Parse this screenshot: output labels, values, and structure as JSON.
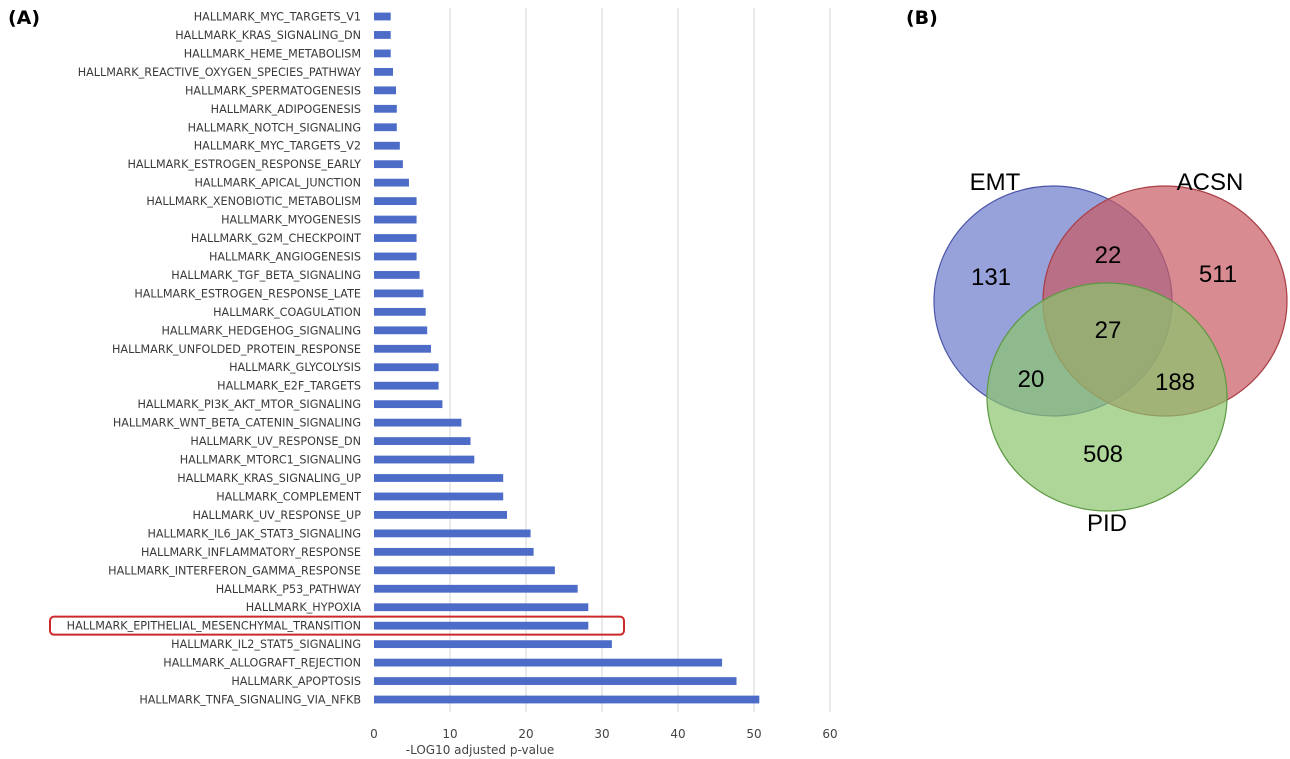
{
  "panels": {
    "a_label": "(A)",
    "b_label": "(B)"
  },
  "colors": {
    "bar": "#4d6cc8",
    "grid": "#d4d4d4",
    "highlight": "#cc2a2a",
    "emt": "#6c7acb",
    "acsn": "#c75a61",
    "pid": "#8cc46e"
  },
  "chart_data": [
    {
      "type": "bar",
      "orientation": "horizontal",
      "categories": [
        "HALLMARK_MYC_TARGETS_V1",
        "HALLMARK_KRAS_SIGNALING_DN",
        "HALLMARK_HEME_METABOLISM",
        "HALLMARK_REACTIVE_OXYGEN_SPECIES_PATHWAY",
        "HALLMARK_SPERMATOGENESIS",
        "HALLMARK_ADIPOGENESIS",
        "HALLMARK_NOTCH_SIGNALING",
        "HALLMARK_MYC_TARGETS_V2",
        "HALLMARK_ESTROGEN_RESPONSE_EARLY",
        "HALLMARK_APICAL_JUNCTION",
        "HALLMARK_XENOBIOTIC_METABOLISM",
        "HALLMARK_MYOGENESIS",
        "HALLMARK_G2M_CHECKPOINT",
        "HALLMARK_ANGIOGENESIS",
        "HALLMARK_TGF_BETA_SIGNALING",
        "HALLMARK_ESTROGEN_RESPONSE_LATE",
        "HALLMARK_COAGULATION",
        "HALLMARK_HEDGEHOG_SIGNALING",
        "HALLMARK_UNFOLDED_PROTEIN_RESPONSE",
        "HALLMARK_GLYCOLYSIS",
        "HALLMARK_E2F_TARGETS",
        "HALLMARK_PI3K_AKT_MTOR_SIGNALING",
        "HALLMARK_WNT_BETA_CATENIN_SIGNALING",
        "HALLMARK_UV_RESPONSE_DN",
        "HALLMARK_MTORC1_SIGNALING",
        "HALLMARK_KRAS_SIGNALING_UP",
        "HALLMARK_COMPLEMENT",
        "HALLMARK_UV_RESPONSE_UP",
        "HALLMARK_IL6_JAK_STAT3_SIGNALING",
        "HALLMARK_INFLAMMATORY_RESPONSE",
        "HALLMARK_INTERFERON_GAMMA_RESPONSE",
        "HALLMARK_P53_PATHWAY",
        "HALLMARK_HYPOXIA",
        "HALLMARK_EPITHELIAL_MESENCHYMAL_TRANSITION",
        "HALLMARK_IL2_STAT5_SIGNALING",
        "HALLMARK_ALLOGRAFT_REJECTION",
        "HALLMARK_APOPTOSIS",
        "HALLMARK_TNFA_SIGNALING_VIA_NFKB"
      ],
      "values": [
        2.2,
        2.2,
        2.2,
        2.5,
        2.9,
        3.0,
        3.0,
        3.4,
        3.8,
        4.6,
        5.6,
        5.6,
        5.6,
        5.6,
        6.0,
        6.5,
        6.8,
        7.0,
        7.5,
        8.5,
        8.5,
        9.0,
        11.5,
        12.7,
        13.2,
        17.0,
        17.0,
        17.5,
        20.6,
        21.0,
        23.8,
        26.8,
        28.2,
        28.2,
        31.3,
        45.8,
        47.7,
        50.7
      ],
      "highlighted_category": "HALLMARK_EPITHELIAL_MESENCHYMAL_TRANSITION",
      "xlabel": "-LOG10 adjusted p-value",
      "xlim": [
        0,
        60
      ],
      "xticks": [
        0,
        10,
        20,
        30,
        40,
        50,
        60
      ],
      "grid": "vertical"
    },
    {
      "type": "venn",
      "sets": [
        "EMT",
        "ACSN",
        "PID"
      ],
      "regions": {
        "EMT_only": 131,
        "EMT_ACSN": 22,
        "ACSN_only": 511,
        "EMT_ACSN_PID": 27,
        "EMT_PID": 20,
        "ACSN_PID": 188,
        "PID_only": 508
      }
    }
  ]
}
